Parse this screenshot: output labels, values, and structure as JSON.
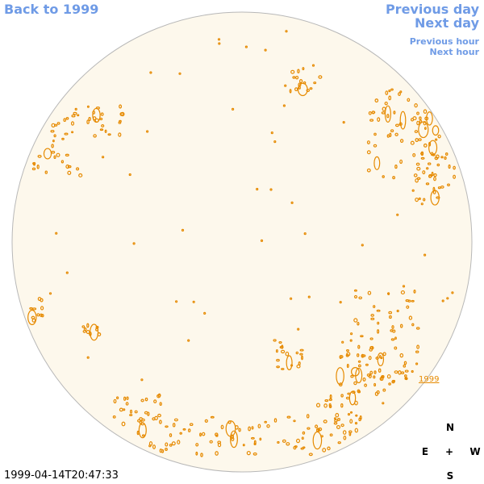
{
  "header": {
    "back_link": "Back to 1999",
    "previous_day": "Previous day",
    "next_day": "Next day",
    "previous_hour": "Previous hour",
    "next_hour": "Next hour"
  },
  "map": {
    "year_label": "1999"
  },
  "compass": {
    "north": "N",
    "east": "E",
    "center": "+",
    "west": "W",
    "south": "S"
  },
  "timestamp": "1999-04-14T20:47:33"
}
